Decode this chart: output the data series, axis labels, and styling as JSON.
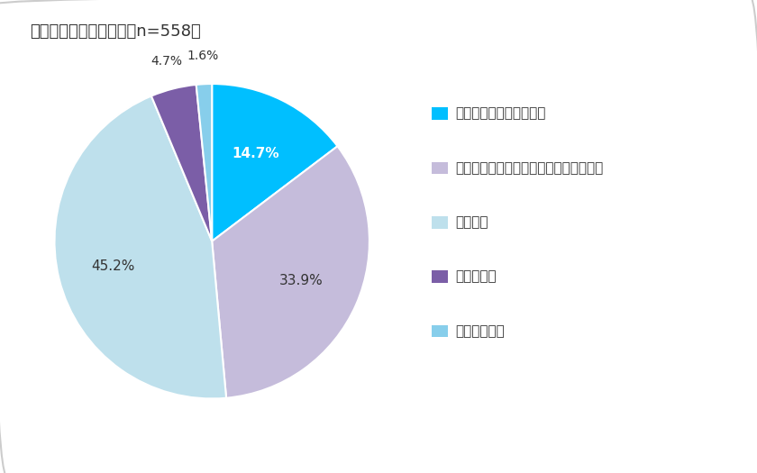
{
  "title": "オンライン参列認知率（n=558）",
  "labels": [
    "知っていて、説明できる",
    "説明できないが、なんとなく知っている",
    "知らない",
    "わからない",
    "答えたくない"
  ],
  "values": [
    14.7,
    33.9,
    45.2,
    4.7,
    1.6
  ],
  "colors": [
    "#00BFFF",
    "#C5BCDB",
    "#BEE0EC",
    "#7B5EA7",
    "#87CEEB"
  ],
  "pct_labels": [
    "14.7%",
    "33.9%",
    "45.2%",
    "4.7%",
    "1.6%"
  ],
  "background_color": "#FFFFFF",
  "title_fontsize": 13,
  "legend_fontsize": 11,
  "pct_fontsize": 11
}
